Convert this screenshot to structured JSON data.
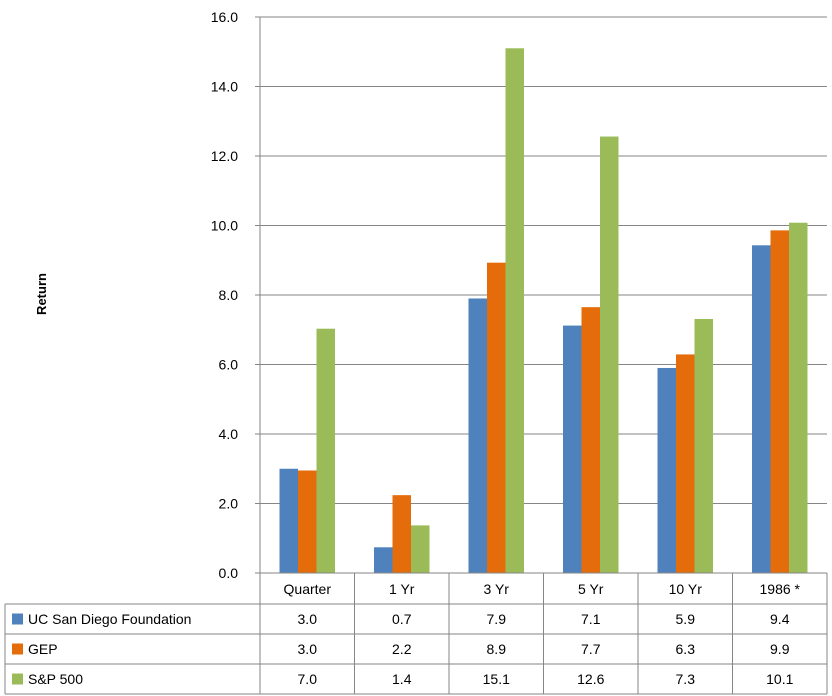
{
  "chart_data": {
    "type": "bar",
    "title": "",
    "xlabel": "",
    "ylabel": "Return",
    "ylim": [
      0,
      16
    ],
    "yticks": [
      "0.0",
      "2.0",
      "4.0",
      "6.0",
      "8.0",
      "10.0",
      "12.0",
      "14.0",
      "16.0"
    ],
    "grid": true,
    "legend": "data-table",
    "categories": [
      "Quarter",
      "1 Yr",
      "3 Yr",
      "5 Yr",
      "10 Yr",
      "1986 *"
    ],
    "series": [
      {
        "name": "UC San Diego Foundation",
        "color": "#4F81BD",
        "values": [
          3.0,
          0.74,
          7.9,
          7.12,
          5.9,
          9.43
        ],
        "labels": [
          "3.0",
          "0.7",
          "7.9",
          "7.1",
          "5.9",
          "9.4"
        ]
      },
      {
        "name": "GEP",
        "color": "#E46C0A",
        "values": [
          2.95,
          2.24,
          8.93,
          7.65,
          6.29,
          9.86
        ],
        "labels": [
          "3.0",
          "2.2",
          "8.9",
          "7.7",
          "6.3",
          "9.9"
        ]
      },
      {
        "name": "S&P 500",
        "color": "#9BBB59",
        "values": [
          7.03,
          1.37,
          15.1,
          12.56,
          7.31,
          10.08
        ],
        "labels": [
          "7.0",
          "1.4",
          "15.1",
          "12.6",
          "7.3",
          "10.1"
        ]
      }
    ]
  }
}
